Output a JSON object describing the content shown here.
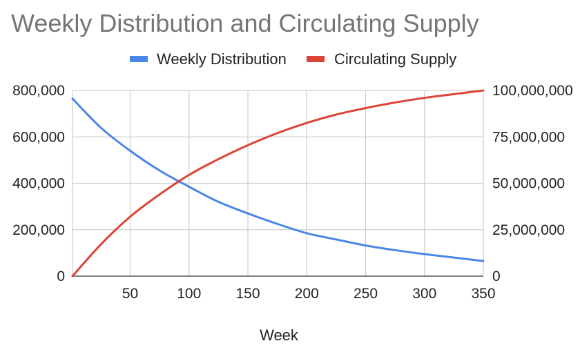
{
  "chart_data": {
    "type": "line",
    "title": "Weekly Distribution and Circulating Supply",
    "xlabel": "Week",
    "ylabel": "",
    "ylabel_right": "",
    "x": [
      1,
      25,
      50,
      75,
      100,
      125,
      150,
      175,
      200,
      225,
      250,
      275,
      300,
      325,
      350
    ],
    "xlim": [
      1,
      350
    ],
    "xticks": [
      50,
      100,
      150,
      200,
      250,
      300,
      350
    ],
    "xtick_labels": [
      "50",
      "100",
      "150",
      "200",
      "250",
      "300",
      "350"
    ],
    "ylim_left": [
      0,
      800000
    ],
    "yticks_left": [
      0,
      200000,
      400000,
      600000,
      800000
    ],
    "ytick_labels_left": [
      "0",
      "200,000",
      "400,000",
      "600,000",
      "800,000"
    ],
    "ylim_right": [
      0,
      100000000
    ],
    "yticks_right": [
      0,
      25000000,
      50000000,
      75000000,
      100000000
    ],
    "ytick_labels_right": [
      "0",
      "25,000,000",
      "50,000,000",
      "75,000,000",
      "100,000,000"
    ],
    "grid": true,
    "legend_position": "top",
    "series": [
      {
        "name": "Weekly Distribution",
        "axis": "left",
        "color": "#4a86e8",
        "values": [
          765000,
          640000,
          540000,
          455000,
          385000,
          320000,
          270000,
          225000,
          185000,
          158000,
          132000,
          112000,
          95000,
          80000,
          65000
        ]
      },
      {
        "name": "Circulating Supply",
        "axis": "right",
        "color": "#db4437",
        "values": [
          0,
          17000000,
          32000000,
          44000000,
          54500000,
          63000000,
          70500000,
          77000000,
          82500000,
          87000000,
          90500000,
          93500000,
          96000000,
          98000000,
          100000000
        ]
      }
    ]
  }
}
